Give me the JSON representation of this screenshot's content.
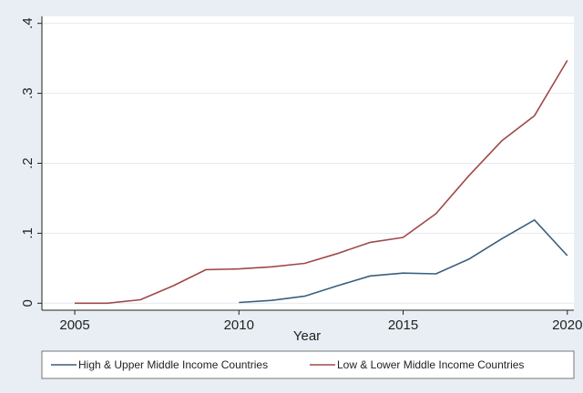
{
  "chart_data": {
    "type": "line",
    "title": "",
    "xlabel": "Year",
    "ylabel": "",
    "xlim": [
      2004,
      2020.2
    ],
    "ylim": [
      -0.01,
      0.41
    ],
    "xticks": [
      2005,
      2010,
      2015,
      2020
    ],
    "yticks": [
      0,
      0.1,
      0.2,
      0.3,
      0.4
    ],
    "ytick_labels": [
      "0",
      ".1",
      ".2",
      ".3",
      ".4"
    ],
    "grid": true,
    "legend_position": "bottom",
    "series": [
      {
        "name": "High & Upper Middle Income Countries",
        "color": "#3a5f7e",
        "x": [
          2010,
          2011,
          2012,
          2013,
          2014,
          2015,
          2016,
          2017,
          2018,
          2019,
          2020
        ],
        "y": [
          0.001,
          0.004,
          0.01,
          0.025,
          0.039,
          0.043,
          0.042,
          0.063,
          0.092,
          0.119,
          0.068
        ]
      },
      {
        "name": "Low & Lower Middle Income Countries",
        "color": "#a04848",
        "x": [
          2005,
          2006,
          2007,
          2008,
          2009,
          2010,
          2011,
          2012,
          2013,
          2014,
          2015,
          2016,
          2017,
          2018,
          2019,
          2020
        ],
        "y": [
          0.0,
          0.0,
          0.005,
          0.025,
          0.048,
          0.049,
          0.052,
          0.057,
          0.071,
          0.087,
          0.094,
          0.128,
          0.182,
          0.232,
          0.268,
          0.347
        ]
      }
    ]
  }
}
